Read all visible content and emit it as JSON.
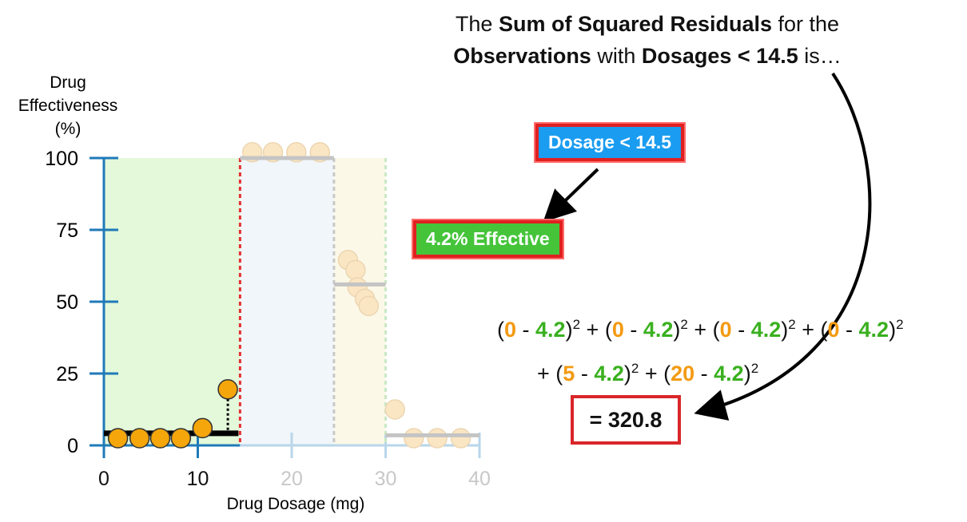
{
  "headline": {
    "t1": "The ",
    "b1": "Sum of Squared Residuals",
    "t2": " for the",
    "b2": "Observations",
    "t3": " with ",
    "b3": "Dosages < 14.5",
    "t4": " is…"
  },
  "tags": {
    "condition": "Dosage < 14.5",
    "prediction": "4.2% Effective"
  },
  "equation": {
    "line1": [
      {
        "obs": "0",
        "pred": "4.2"
      },
      {
        "obs": "0",
        "pred": "4.2"
      },
      {
        "obs": "0",
        "pred": "4.2"
      },
      {
        "obs": "0",
        "pred": "4.2"
      }
    ],
    "line2": [
      {
        "obs": "5",
        "pred": "4.2"
      },
      {
        "obs": "20",
        "pred": "4.2"
      }
    ],
    "result": "= 320.8"
  },
  "colors": {
    "axis": "#1f7ab8",
    "axis_faded": "#b9d6ea",
    "point": "#f4a60a",
    "point_faded": "#fbe6c4",
    "green_region": "#e4f8da",
    "blue_region": "#f1f6fa",
    "yellow_region": "#fbf8e8",
    "split_line": "#e33030",
    "obs_orange": "#f39a12",
    "pred_green": "#3ab01f"
  },
  "chart_data": {
    "type": "scatter",
    "ylabel": "Drug Effectiveness (%)",
    "xlabel": "Drug Dosage (mg)",
    "xlim": [
      0,
      40
    ],
    "ylim": [
      0,
      100
    ],
    "xticks": [
      "0",
      "10",
      "20",
      "30",
      "40"
    ],
    "yticks": [
      "0",
      "25",
      "50",
      "75",
      "100"
    ],
    "split_threshold": 14.5,
    "other_thresholds": [
      24.5,
      30
    ],
    "highlighted_points": [
      {
        "x": 1.5,
        "y": 2.5
      },
      {
        "x": 3.8,
        "y": 2.5
      },
      {
        "x": 6.0,
        "y": 2.5
      },
      {
        "x": 8.2,
        "y": 2.5
      },
      {
        "x": 10.5,
        "y": 6
      },
      {
        "x": 13.2,
        "y": 19.5
      }
    ],
    "faded_points": [
      {
        "x": 15.8,
        "y": 102
      },
      {
        "x": 18.0,
        "y": 102
      },
      {
        "x": 20.5,
        "y": 102
      },
      {
        "x": 23.0,
        "y": 102
      },
      {
        "x": 26.0,
        "y": 64.5
      },
      {
        "x": 26.8,
        "y": 61
      },
      {
        "x": 27.0,
        "y": 55
      },
      {
        "x": 27.8,
        "y": 51
      },
      {
        "x": 28.2,
        "y": 48.5
      },
      {
        "x": 31.0,
        "y": 12.5
      },
      {
        "x": 33.0,
        "y": 2.5
      },
      {
        "x": 35.5,
        "y": 2.5
      },
      {
        "x": 38.0,
        "y": 2.5
      }
    ],
    "leaf_means": [
      {
        "x0": 0,
        "x1": 14.5,
        "y": 4.2,
        "active": true
      },
      {
        "x0": 14.5,
        "x1": 24.5,
        "y": 100,
        "active": false
      },
      {
        "x0": 24.5,
        "x1": 30,
        "y": 56,
        "active": false
      },
      {
        "x0": 30,
        "x1": 40,
        "y": 3.5,
        "active": false
      }
    ],
    "residual_point": {
      "x": 13.2,
      "y_from": 19.5,
      "y_to": 4.2
    }
  }
}
